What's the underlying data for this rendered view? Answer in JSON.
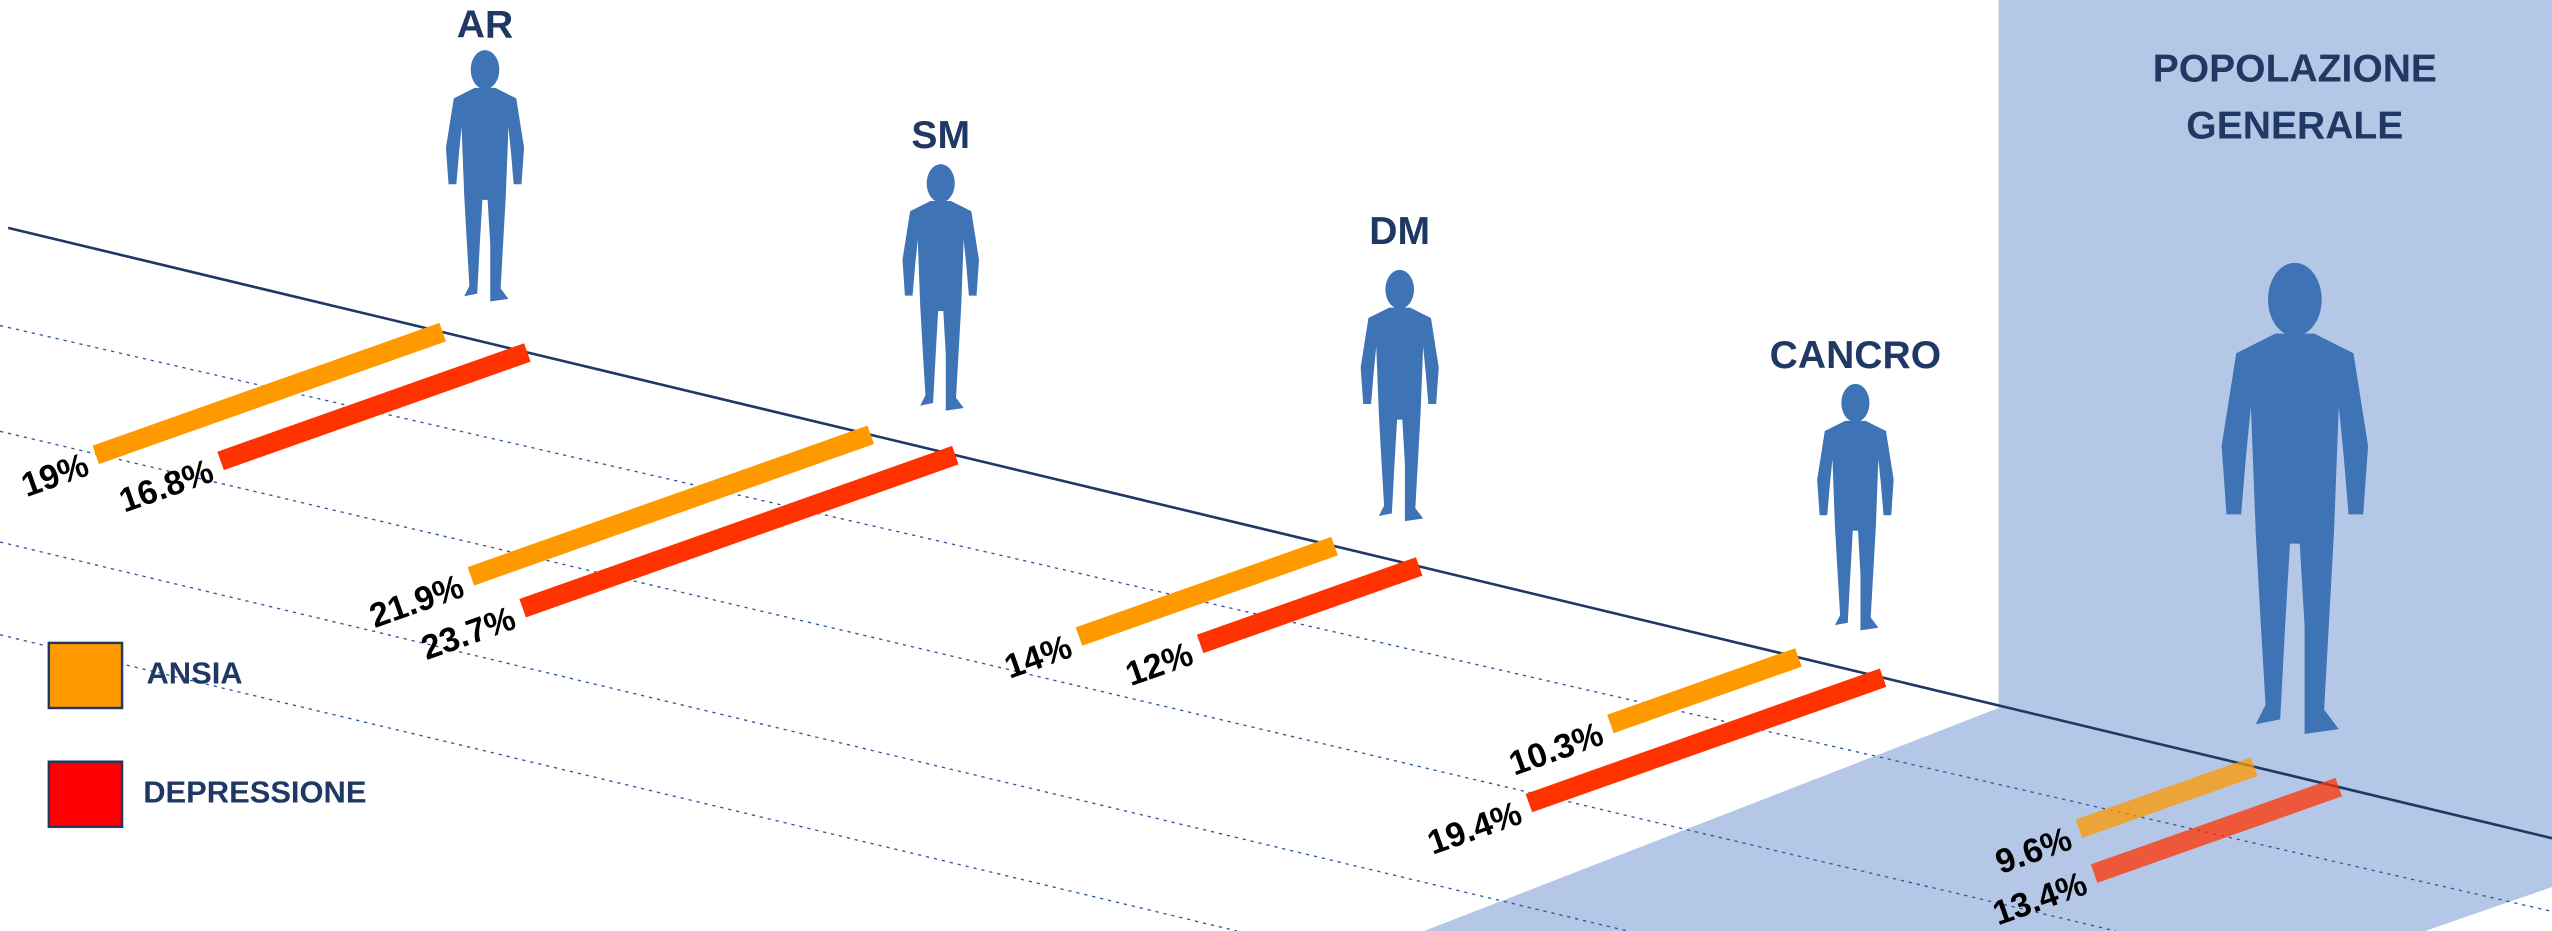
{
  "chart_data": {
    "type": "bar",
    "categories": [
      "AR",
      "SM",
      "DM",
      "CANCRO",
      "POPOLAZIONE GENERALE"
    ],
    "series": [
      {
        "name": "ANSIA",
        "color": "#ff9900",
        "values": [
          19,
          21.9,
          14,
          10.3,
          9.6
        ],
        "value_labels": [
          "19%",
          "21.9%",
          "14%",
          "10.3%",
          "9.6%"
        ]
      },
      {
        "name": "DEPRESSIONE",
        "color": "#ff3300",
        "values": [
          16.8,
          23.7,
          12,
          19.4,
          13.4
        ],
        "value_labels": [
          "16.8%",
          "23.7%",
          "12%",
          "19.4%",
          "13.4%"
        ]
      }
    ]
  }
}
